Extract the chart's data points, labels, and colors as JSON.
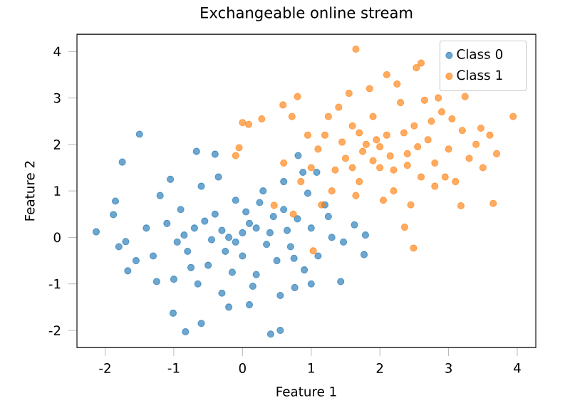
{
  "chart_data": {
    "type": "scatter",
    "title": "Exchangeable online stream",
    "xlabel": "Feature 1",
    "ylabel": "Feature 2",
    "xlim": [
      -2.41,
      4.27
    ],
    "ylim": [
      -2.37,
      4.37
    ],
    "xticks": [
      -2,
      -1,
      0,
      1,
      2,
      3,
      4
    ],
    "yticks": [
      -2,
      -1,
      0,
      1,
      2,
      3,
      4
    ],
    "grid": false,
    "legend": "top right",
    "marker": "circle",
    "series": [
      {
        "name": "Class 0",
        "color": "#1f77b4",
        "x": [
          -2.13,
          -1.5,
          -1.75,
          -1.01,
          -0.83,
          0.41,
          0.55,
          -0.6,
          -0.67,
          -0.4,
          -1.67,
          -1.85,
          -1.88,
          -1.8,
          -1.7,
          1.63,
          1.77,
          1.43,
          0.76,
          1.79,
          1.47,
          0.88,
          1.08,
          0.81,
          -1.2,
          -1.1,
          -1.3,
          -1.0,
          -0.9,
          -0.8,
          -0.7,
          -0.6,
          -0.5,
          -0.4,
          -0.3,
          -0.2,
          -0.1,
          0.0,
          0.1,
          0.2,
          0.3,
          0.4,
          0.5,
          0.6,
          0.7,
          0.8,
          0.9,
          1.0,
          1.1,
          1.2,
          1.3,
          -1.4,
          -0.95,
          -0.55,
          -0.25,
          0.05,
          0.35,
          0.65,
          -0.15,
          0.25,
          -0.45,
          0.15,
          -0.75,
          0.45,
          -1.05,
          -0.35,
          0.55,
          -0.65,
          1.0,
          0.95,
          -1.55,
          -1.25,
          0.0,
          -0.1,
          0.2,
          -0.3,
          0.75,
          1.25,
          -0.85,
          0.1,
          -0.2,
          0.6
        ],
        "values": [
          0.12,
          2.22,
          1.62,
          -1.63,
          -2.03,
          -2.08,
          -2.0,
          -1.85,
          1.85,
          1.79,
          -0.72,
          0.78,
          0.49,
          -0.2,
          -0.09,
          0.27,
          -0.37,
          -0.95,
          -1.08,
          0.05,
          -0.1,
          1.4,
          1.4,
          1.76,
          0.9,
          0.3,
          -0.4,
          -0.9,
          0.6,
          -0.3,
          0.2,
          1.1,
          -0.6,
          0.5,
          -1.2,
          0.0,
          0.8,
          -0.4,
          0.3,
          -0.8,
          1.0,
          0.1,
          -0.5,
          0.6,
          -0.2,
          0.4,
          -0.7,
          0.2,
          -0.4,
          0.7,
          0.0,
          0.2,
          -0.1,
          0.35,
          -0.3,
          0.55,
          -0.15,
          0.15,
          -0.75,
          0.75,
          -0.05,
          -1.05,
          -0.65,
          0.45,
          1.25,
          1.3,
          -1.25,
          -1.0,
          -1.0,
          0.95,
          -0.5,
          -0.95,
          0.1,
          -0.1,
          0.2,
          0.15,
          -0.45,
          0.45,
          0.05,
          -1.45,
          -1.5,
          1.2
        ]
      },
      {
        "name": "Class 1",
        "color": "#ff7f0e",
        "x": [
          3.94,
          1.65,
          2.49,
          3.65,
          3.47,
          2.6,
          2.53,
          3.24,
          3.18,
          2.36,
          1.03,
          -0.1,
          -0.05,
          0.0,
          0.09,
          0.28,
          0.8,
          0.59,
          0.72,
          0.74,
          0.46,
          1.0,
          1.2,
          1.3,
          1.4,
          1.5,
          1.6,
          1.7,
          1.8,
          1.9,
          2.0,
          2.1,
          2.2,
          2.3,
          2.4,
          2.5,
          2.6,
          2.7,
          2.8,
          2.9,
          3.0,
          3.1,
          3.2,
          3.3,
          3.4,
          1.1,
          1.35,
          1.55,
          1.75,
          1.95,
          2.15,
          2.35,
          2.55,
          2.75,
          2.95,
          1.65,
          1.85,
          2.05,
          2.25,
          2.45,
          1.25,
          0.95,
          0.85,
          1.45,
          2.65,
          3.05,
          3.5,
          3.7,
          1.7,
          2.0,
          2.2,
          1.9,
          2.4,
          1.6,
          2.8,
          1.15,
          0.6,
          2.85,
          2.1,
          3.6
        ],
        "values": [
          2.6,
          4.05,
          -0.23,
          0.73,
          2.35,
          3.75,
          3.65,
          3.03,
          0.68,
          0.22,
          -0.29,
          1.76,
          1.93,
          2.47,
          2.43,
          2.55,
          3.03,
          2.85,
          2.6,
          0.5,
          0.69,
          1.5,
          2.2,
          1.0,
          2.8,
          1.7,
          2.4,
          1.2,
          2.0,
          2.6,
          1.5,
          2.2,
          1.0,
          2.9,
          1.8,
          2.4,
          1.3,
          2.1,
          1.6,
          2.7,
          1.9,
          1.2,
          2.3,
          1.7,
          2.0,
          1.9,
          1.45,
          3.1,
          1.85,
          2.1,
          1.75,
          2.25,
          1.95,
          2.5,
          1.3,
          0.9,
          3.2,
          0.8,
          3.3,
          0.7,
          2.6,
          2.2,
          1.2,
          2.05,
          2.95,
          2.55,
          1.5,
          1.8,
          2.25,
          1.95,
          1.45,
          1.65,
          1.55,
          1.5,
          1.1,
          0.7,
          1.6,
          3.0,
          3.5,
          2.2
        ]
      }
    ]
  }
}
